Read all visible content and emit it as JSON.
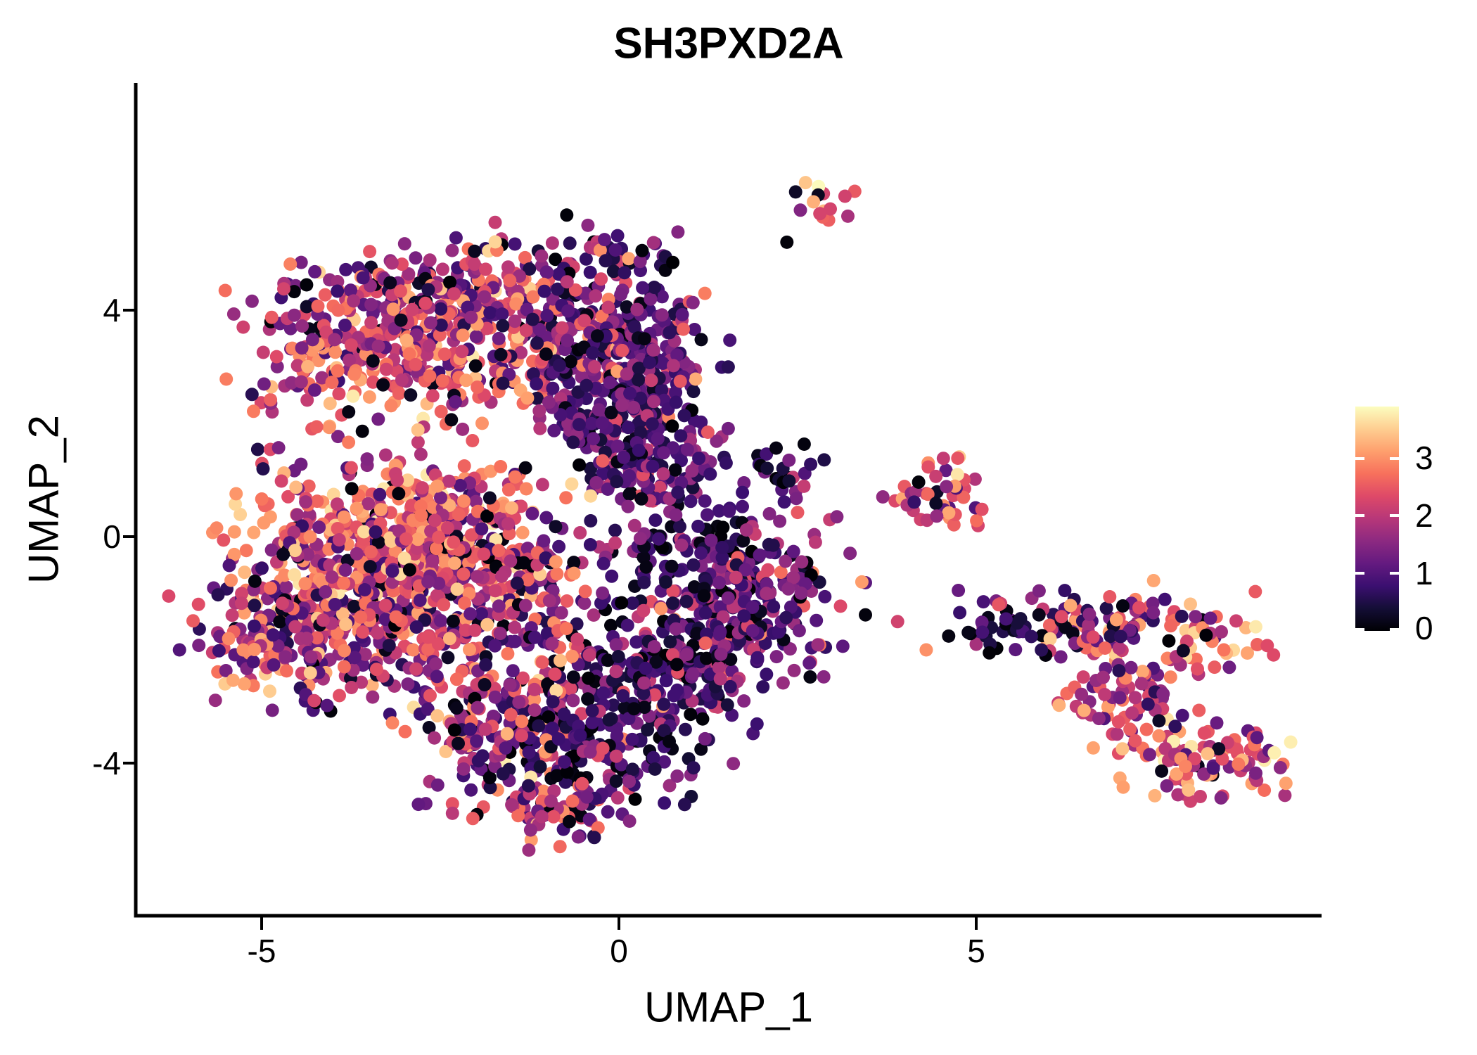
{
  "title": "SH3PXD2A",
  "labels": {
    "x_axis": "UMAP_1",
    "y_axis": "UMAP_2",
    "x_ticks": [
      "-5",
      "0",
      "5"
    ],
    "y_ticks": [
      "4",
      "0",
      "-4"
    ],
    "colorbar_ticks": [
      "3",
      "2",
      "1",
      "0"
    ]
  },
  "chart_data": {
    "type": "scatter",
    "title": "SH3PXD2A",
    "xlabel": "UMAP_1",
    "ylabel": "UMAP_2",
    "xlim": [
      -6.76,
      9.83
    ],
    "ylim": [
      -6.7,
      8.0
    ],
    "x_tick_values": [
      -5,
      0,
      5
    ],
    "y_tick_values": [
      4,
      0,
      -4
    ],
    "grid": false,
    "legend_position": "right",
    "point_radius_px": 9.5,
    "seed": 20240613,
    "colorbar": {
      "vmin": 0,
      "vmax": 3.9,
      "tick_values": [
        0,
        1,
        2,
        3
      ],
      "colormap": "magma"
    },
    "colormap_stops": [
      [
        0.0,
        "#000004"
      ],
      [
        0.1,
        "#140e36"
      ],
      [
        0.2,
        "#3b0f70"
      ],
      [
        0.3,
        "#641a80"
      ],
      [
        0.4,
        "#8c2981"
      ],
      [
        0.5,
        "#b73779"
      ],
      [
        0.6,
        "#de4968"
      ],
      [
        0.7,
        "#f7705c"
      ],
      [
        0.8,
        "#fe9f6d"
      ],
      [
        0.9,
        "#fece91"
      ],
      [
        1.0,
        "#fcfdbf"
      ]
    ],
    "expression_profiles": {
      "hot": [
        [
          0,
          0.3,
          0.05
        ],
        [
          0.7,
          1.5,
          0.12
        ],
        [
          1.5,
          2.3,
          0.26
        ],
        [
          2.3,
          3.1,
          0.42
        ],
        [
          3.1,
          3.75,
          0.15
        ]
      ],
      "warm": [
        [
          0,
          0.3,
          0.07
        ],
        [
          0.5,
          1.3,
          0.2
        ],
        [
          1.3,
          2.2,
          0.38
        ],
        [
          2.2,
          3.0,
          0.28
        ],
        [
          3.0,
          3.6,
          0.07
        ]
      ],
      "mixed": [
        [
          0,
          0.3,
          0.09
        ],
        [
          0.5,
          1.4,
          0.28
        ],
        [
          1.4,
          2.3,
          0.33
        ],
        [
          2.3,
          3.2,
          0.24
        ],
        [
          3.2,
          3.8,
          0.06
        ]
      ],
      "cool": [
        [
          0,
          0.25,
          0.1
        ],
        [
          0.4,
          1.1,
          0.44
        ],
        [
          1.1,
          1.8,
          0.3
        ],
        [
          1.8,
          2.6,
          0.13
        ],
        [
          2.6,
          3.3,
          0.03
        ]
      ],
      "dark": [
        [
          0,
          0.2,
          0.28
        ],
        [
          0.35,
          1.0,
          0.45
        ],
        [
          1.0,
          1.7,
          0.2
        ],
        [
          1.7,
          2.5,
          0.07
        ]
      ],
      "pinkhigh": [
        [
          0,
          0.3,
          0.06
        ],
        [
          0.8,
          1.6,
          0.14
        ],
        [
          1.6,
          2.6,
          0.45
        ],
        [
          2.6,
          3.4,
          0.28
        ],
        [
          3.4,
          3.9,
          0.07
        ]
      ],
      "clump": [
        [
          0,
          0.15,
          0.25
        ],
        [
          0.7,
          1.1,
          0.2
        ],
        [
          1.4,
          2.1,
          0.25
        ],
        [
          2.8,
          3.2,
          0.3
        ]
      ]
    },
    "clusters": [
      {
        "id": "topleft-a1",
        "profile": "warm",
        "cx": -3.3,
        "cy": 3.9,
        "sx": 0.85,
        "sy": 0.55,
        "n": 200
      },
      {
        "id": "topleft-a2",
        "profile": "warm",
        "cx": -1.7,
        "cy": 4.25,
        "sx": 0.75,
        "sy": 0.5,
        "n": 180
      },
      {
        "id": "topleft-a3",
        "profile": "hot",
        "cx": -2.7,
        "cy": 2.95,
        "sx": 1.0,
        "sy": 0.45,
        "n": 170
      },
      {
        "id": "topleft-a4",
        "profile": "cool",
        "cx": -0.55,
        "cy": 3.4,
        "sx": 0.6,
        "sy": 0.65,
        "n": 170
      },
      {
        "id": "topleft-a5",
        "profile": "mixed",
        "cx": -4.55,
        "cy": 3.1,
        "sx": 0.4,
        "sy": 0.6,
        "n": 40
      },
      {
        "id": "topleft-a6",
        "profile": "cool",
        "cx": -0.1,
        "cy": 4.9,
        "sx": 0.4,
        "sy": 0.3,
        "n": 30
      },
      {
        "id": "upper-purple-b3",
        "profile": "cool",
        "cx": 0.55,
        "cy": 3.55,
        "sx": 0.4,
        "sy": 0.5,
        "n": 90
      },
      {
        "id": "purple-b1",
        "profile": "cool",
        "cx": 0.1,
        "cy": 2.1,
        "sx": 0.55,
        "sy": 0.7,
        "n": 230
      },
      {
        "id": "purple-b2",
        "profile": "cool",
        "cx": 0.6,
        "cy": 1.15,
        "sx": 0.45,
        "sy": 0.5,
        "n": 80
      },
      {
        "id": "left-c1",
        "profile": "hot",
        "cx": -3.75,
        "cy": -0.3,
        "sx": 0.75,
        "sy": 0.6,
        "n": 200
      },
      {
        "id": "left-c2",
        "profile": "hot",
        "cx": -2.55,
        "cy": -0.15,
        "sx": 0.8,
        "sy": 0.6,
        "n": 190
      },
      {
        "id": "left-c3",
        "profile": "warm",
        "cx": -4.4,
        "cy": -1.55,
        "sx": 0.6,
        "sy": 0.65,
        "n": 160
      },
      {
        "id": "left-c4",
        "profile": "warm",
        "cx": -3.2,
        "cy": -1.6,
        "sx": 0.8,
        "sy": 0.65,
        "n": 180
      },
      {
        "id": "left-c5",
        "profile": "mixed",
        "cx": -1.6,
        "cy": -0.85,
        "sx": 0.75,
        "sy": 0.75,
        "n": 180
      },
      {
        "id": "left-c6",
        "profile": "hot",
        "cx": -2.9,
        "cy": 0.55,
        "sx": 1.05,
        "sy": 0.35,
        "n": 120
      },
      {
        "id": "left-tip-c7",
        "profile": "mixed",
        "cx": -5.35,
        "cy": -1.9,
        "sx": 0.35,
        "sy": 0.5,
        "n": 45
      },
      {
        "id": "gap-sparse",
        "profile": "warm",
        "shape": "uniform",
        "cx": -3.6,
        "cy": 1.45,
        "sx": 1.6,
        "sy": 0.5,
        "n": 22
      },
      {
        "id": "bottom-d1",
        "profile": "mixed",
        "cx": -1.6,
        "cy": -3.05,
        "sx": 0.75,
        "sy": 0.75,
        "n": 190
      },
      {
        "id": "bottom-d2",
        "profile": "dark",
        "cx": -0.35,
        "cy": -3.6,
        "sx": 0.75,
        "sy": 0.65,
        "n": 200
      },
      {
        "id": "bottom-tip-d3",
        "profile": "warm",
        "cx": -0.9,
        "cy": -4.8,
        "sx": 0.55,
        "sy": 0.3,
        "n": 70
      },
      {
        "id": "bottom-d4",
        "profile": "dark",
        "cx": 0.6,
        "cy": -2.4,
        "sx": 0.6,
        "sy": 0.7,
        "n": 130
      },
      {
        "id": "right-e1",
        "profile": "cool",
        "cx": 1.5,
        "cy": -1.5,
        "sx": 0.75,
        "sy": 0.75,
        "n": 230
      },
      {
        "id": "right-e2",
        "profile": "cool",
        "cx": 2.1,
        "cy": -0.65,
        "sx": 0.45,
        "sy": 0.45,
        "n": 70
      },
      {
        "id": "right-e3",
        "profile": "dark",
        "cx": 0.95,
        "cy": -0.35,
        "sx": 0.5,
        "sy": 0.45,
        "n": 80
      },
      {
        "id": "small-f",
        "profile": "dark",
        "cx": 2.3,
        "cy": 1.1,
        "sx": 0.22,
        "sy": 0.3,
        "n": 26
      },
      {
        "id": "small-g",
        "profile": "hot",
        "cx": 4.45,
        "cy": 0.7,
        "sx": 0.33,
        "sy": 0.35,
        "n": 48
      },
      {
        "id": "top-h",
        "profile": "pinkhigh",
        "cx": 2.85,
        "cy": 5.9,
        "sx": 0.22,
        "sy": 0.22,
        "n": 14
      },
      {
        "id": "top-clump",
        "profile": "clump",
        "cx": 0.55,
        "cy": 5.0,
        "sx": 0.28,
        "sy": 0.16,
        "n": 9
      },
      {
        "id": "trail-s1",
        "profile": "cool",
        "shape": "points",
        "points": [
          [
            -0.25,
            4.55,
            2.3
          ],
          [
            0.05,
            4.35,
            1.4
          ],
          [
            -0.15,
            4.05,
            2.1
          ],
          [
            0.3,
            4.7,
            0.9
          ],
          [
            -0.55,
            4.3,
            1.0
          ]
        ]
      },
      {
        "id": "farright-i1",
        "profile": "dark",
        "cx": 5.6,
        "cy": -1.6,
        "sx": 0.45,
        "sy": 0.22,
        "n": 38
      },
      {
        "id": "farright-i2",
        "profile": "mixed",
        "cx": 6.6,
        "cy": -1.5,
        "sx": 0.6,
        "sy": 0.33,
        "n": 80
      },
      {
        "id": "farright-i3",
        "profile": "hot",
        "cx": 8.25,
        "cy": -1.75,
        "sx": 0.35,
        "sy": 0.3,
        "n": 42
      },
      {
        "id": "farright-i4",
        "profile": "warm",
        "cx": 7.1,
        "cy": -2.9,
        "sx": 0.5,
        "sy": 0.5,
        "n": 80
      },
      {
        "id": "farright-i5",
        "profile": "pinkhigh",
        "cx": 8.1,
        "cy": -4.0,
        "sx": 0.5,
        "sy": 0.35,
        "n": 70
      },
      {
        "id": "farright-i6",
        "profile": "pinkhigh",
        "cx": 8.85,
        "cy": -3.85,
        "sx": 0.25,
        "sy": 0.3,
        "n": 22
      },
      {
        "id": "bridge-s2",
        "profile": "mixed",
        "shape": "points",
        "points": [
          [
            3.4,
            -0.8,
            3.1
          ],
          [
            3.9,
            -1.5,
            2.2
          ],
          [
            4.3,
            -2.0,
            3.0
          ],
          [
            4.75,
            -0.95,
            1.2
          ],
          [
            5.0,
            -1.9,
            1.8
          ],
          [
            5.1,
            -1.15,
            0.9
          ],
          [
            2.75,
            -0.1,
            2.0
          ],
          [
            3.05,
            0.35,
            1.5
          ],
          [
            2.6,
            -0.55,
            0.4
          ]
        ]
      },
      {
        "id": "bridge-s3",
        "profile": "cool",
        "shape": "points",
        "points": [
          [
            1.55,
            0.5,
            0.8
          ],
          [
            1.85,
            0.25,
            1.1
          ],
          [
            1.5,
            1.3,
            0.7
          ],
          [
            1.75,
            0.95,
            1.3
          ],
          [
            2.95,
            0.3,
            2.1
          ]
        ]
      },
      {
        "id": "outliers",
        "profile": "mixed",
        "shape": "points",
        "points": [
          [
            -6.3,
            -1.05,
            2.3
          ],
          [
            -6.15,
            -2.0,
            1.0
          ],
          [
            2.35,
            5.2,
            0.05
          ],
          [
            3.3,
            6.1,
            2.5
          ]
        ]
      }
    ]
  }
}
